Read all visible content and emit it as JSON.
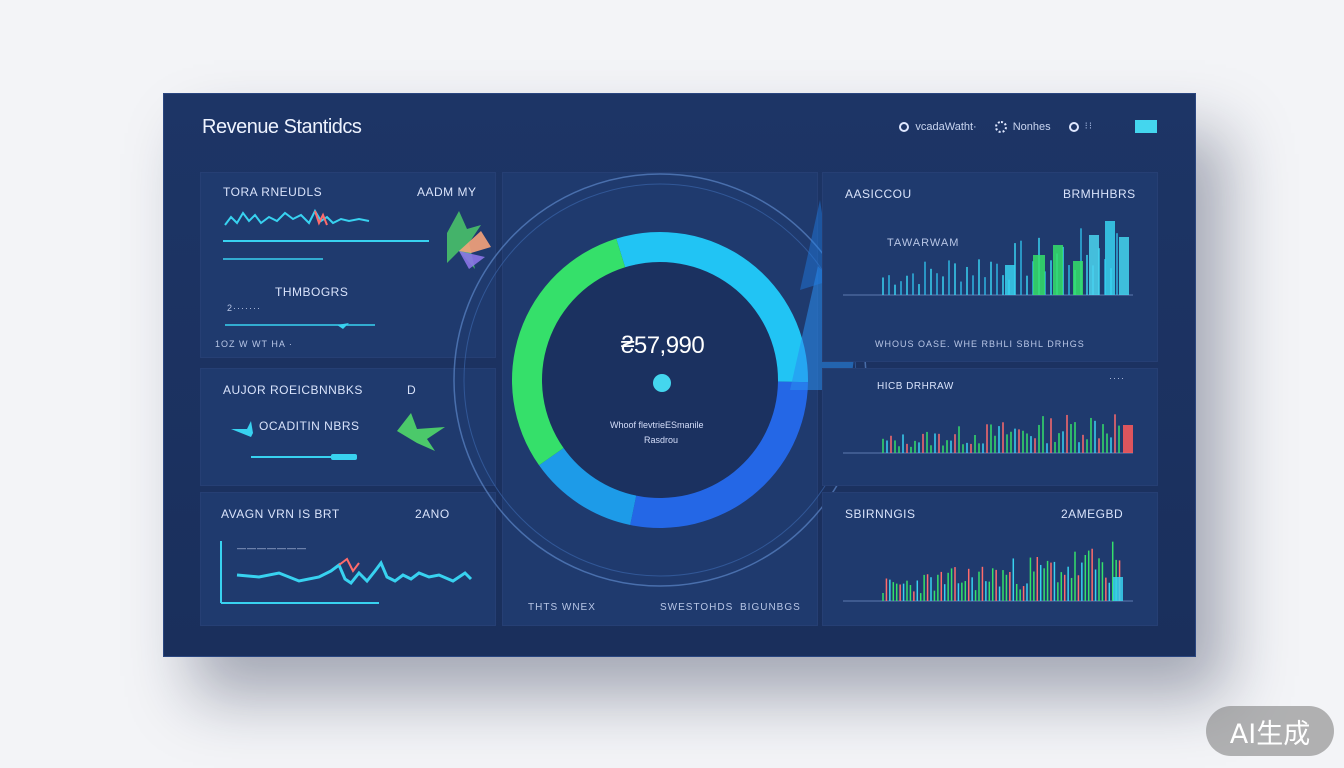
{
  "header": {
    "title": "Revenue Stantidcs",
    "nav": [
      {
        "label": "vcadaWatht·",
        "icon": "circle-icon"
      },
      {
        "label": "Nonhes",
        "icon": "gear-icon"
      },
      {
        "label": "⁝⁝",
        "icon": "grid-icon"
      }
    ]
  },
  "panels": {
    "total_revenue": {
      "title": "TORA RNEUDLS",
      "aside": "AADM MY",
      "sub_title": "THMBOGRS",
      "sub_line": "2·······",
      "footer": "1OZ  W  WT  HA ·"
    },
    "author": {
      "title": "AUJOR  ROEICBNNBKS",
      "aside": "D",
      "line": "OCADITIN NBRS"
    },
    "avg_view": {
      "title": "AVAGN  VRN IS BRT",
      "aside": "2ANO",
      "caption": "———————"
    },
    "center": {
      "value": "₴57,990",
      "caption_line1": "Whoof  flevtrieESmanile",
      "caption_line2": "Rasdrou",
      "footer_left": "THTS  WNEX",
      "footer_mid": "SWESTOHDS",
      "footer_right": "BIGUNBGS"
    },
    "top_right": {
      "title": "AASICCOU",
      "aside": "BRMHHBRS",
      "legend": "TAWARWAM",
      "footer": "WHOUS  OASE.  WHE  RBHLI   SBHL  DRHGS"
    },
    "mid_right": {
      "title": "HICB DRHRAW",
      "aside": "····"
    },
    "bot_right": {
      "title": "SBIRNNGIS",
      "aside": "2AMEGBD"
    }
  },
  "chart_data": {
    "type": "pie",
    "title": "₴57,990",
    "slices": [
      {
        "label": "cyan",
        "value": 30
      },
      {
        "label": "blue",
        "value": 28
      },
      {
        "label": "light-blue",
        "value": 12
      },
      {
        "label": "green",
        "value": 30
      }
    ]
  },
  "colors": {
    "accent": "#44d6ee",
    "green": "#35e06a",
    "blue": "#2467e6",
    "cyan": "#21c4f4",
    "bg": "#1d3566"
  },
  "badge": "AI生成"
}
